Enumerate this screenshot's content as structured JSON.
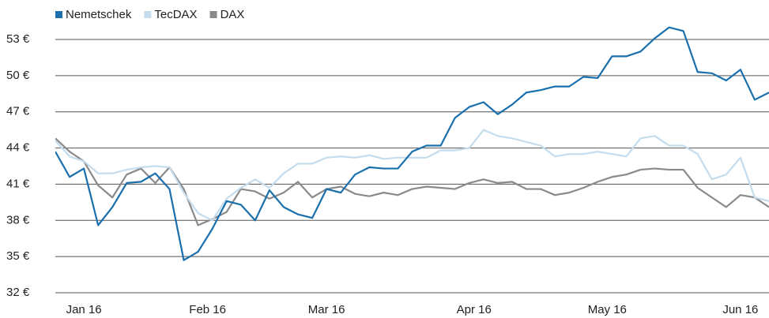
{
  "chart_data": {
    "type": "line",
    "x": [
      0,
      3,
      6,
      9,
      12,
      15,
      18,
      21,
      24,
      27,
      30,
      33,
      36,
      39,
      42,
      45,
      48,
      51,
      54,
      57,
      60,
      63,
      66,
      69,
      72,
      75,
      78,
      81,
      84,
      87,
      90,
      93,
      96,
      99,
      102,
      105,
      108,
      111,
      114,
      117,
      120,
      123,
      126,
      129,
      132,
      135,
      138,
      141,
      144,
      147,
      150
    ],
    "series": [
      {
        "name": "Nemetschek",
        "color": "#1a6fad",
        "values": [
          43.7,
          41.6,
          42.3,
          37.6,
          39.1,
          41.1,
          41.2,
          41.9,
          40.6,
          34.7,
          35.4,
          37.3,
          39.6,
          39.3,
          38.0,
          40.5,
          39.1,
          38.5,
          38.2,
          40.6,
          40.3,
          41.8,
          42.4,
          42.3,
          42.3,
          43.7,
          44.2,
          44.2,
          46.5,
          47.4,
          47.8,
          46.8,
          47.6,
          48.6,
          48.8,
          49.1,
          49.1,
          49.9,
          49.8,
          51.6,
          51.6,
          52.0,
          53.1,
          54.0,
          53.7,
          50.3,
          50.2,
          49.6,
          50.5,
          48.0,
          48.6
        ]
      },
      {
        "name": "TecDAX",
        "color": "#c5dcec",
        "values": [
          44.6,
          43.3,
          42.9,
          41.9,
          41.9,
          42.2,
          42.4,
          42.5,
          42.4,
          40.3,
          38.6,
          38.0,
          39.8,
          40.7,
          41.4,
          40.7,
          41.9,
          42.7,
          42.7,
          43.2,
          43.3,
          43.2,
          43.4,
          43.1,
          43.2,
          43.2,
          43.2,
          43.8,
          43.8,
          44.0,
          45.5,
          45.0,
          44.8,
          44.5,
          44.2,
          43.3,
          43.5,
          43.5,
          43.7,
          43.5,
          43.3,
          44.8,
          45.0,
          44.2,
          44.2,
          43.5,
          41.4,
          41.8,
          43.2,
          39.9,
          39.6
        ]
      },
      {
        "name": "DAX",
        "color": "#8a8a8a",
        "values": [
          44.8,
          43.7,
          42.9,
          40.9,
          39.9,
          41.8,
          42.3,
          41.1,
          42.4,
          40.6,
          37.6,
          38.1,
          38.7,
          40.6,
          40.4,
          39.8,
          40.3,
          41.2,
          39.9,
          40.6,
          40.8,
          40.2,
          40.0,
          40.3,
          40.1,
          40.6,
          40.8,
          40.7,
          40.6,
          41.1,
          41.4,
          41.1,
          41.2,
          40.6,
          40.6,
          40.1,
          40.3,
          40.7,
          41.2,
          41.6,
          41.8,
          42.2,
          42.3,
          42.2,
          42.2,
          40.7,
          39.9,
          39.1,
          40.1,
          39.9,
          39.1
        ]
      }
    ],
    "xlim": [
      0,
      150
    ],
    "xticks": [
      {
        "value": 6,
        "label": "Jan 16"
      },
      {
        "value": 32,
        "label": "Feb 16"
      },
      {
        "value": 57,
        "label": "Mar 16"
      },
      {
        "value": 88,
        "label": "Apr 16"
      },
      {
        "value": 116,
        "label": "May 16"
      },
      {
        "value": 144,
        "label": "Jun 16"
      }
    ],
    "ylim": [
      32,
      54.5
    ],
    "yticks": [
      {
        "value": 32,
        "label": "32 €"
      },
      {
        "value": 35,
        "label": "35 €"
      },
      {
        "value": 38,
        "label": "38 €"
      },
      {
        "value": 41,
        "label": "41 €"
      },
      {
        "value": 44,
        "label": "44 €"
      },
      {
        "value": 47,
        "label": "47 €"
      },
      {
        "value": 50,
        "label": "50 €"
      },
      {
        "value": 53,
        "label": "53 €"
      }
    ],
    "grid": true,
    "legend": "top-left"
  }
}
